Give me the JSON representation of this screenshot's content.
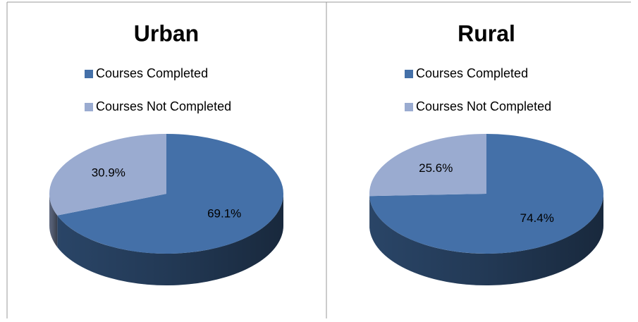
{
  "chart_data": [
    {
      "type": "pie",
      "title": "Urban",
      "categories": [
        "Courses Completed",
        "Courses Not Completed"
      ],
      "values": [
        69.1,
        30.9
      ],
      "value_labels": [
        "69.1%",
        "30.9%"
      ],
      "colors": [
        "#4470a8",
        "#9aabd0"
      ],
      "legend": "top"
    },
    {
      "type": "pie",
      "title": "Rural",
      "categories": [
        "Courses Completed",
        "Courses Not Completed"
      ],
      "values": [
        74.4,
        25.6
      ],
      "value_labels": [
        "74.4%",
        "25.6%"
      ],
      "colors": [
        "#4470a8",
        "#9aabd0"
      ],
      "legend": "top"
    }
  ]
}
